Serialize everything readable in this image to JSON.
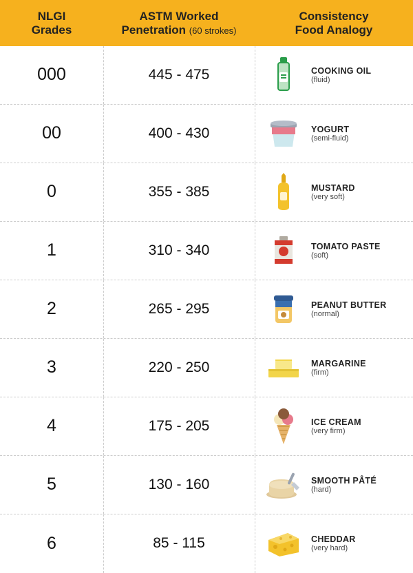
{
  "header": {
    "col1_line1": "NLGI",
    "col1_line2": "Grades",
    "col2_line1": "ASTM Worked",
    "col2_line2": "Penetration ",
    "col2_sub": "(60 strokes)",
    "col3_line1": "Consistency",
    "col3_line2": "Food Analogy"
  },
  "header_bg": "#f6b11e",
  "rows": [
    {
      "grade": "000",
      "penetration": "445 - 475",
      "food": "COOKING OIL",
      "desc": "(fluid)",
      "icon": "oil"
    },
    {
      "grade": "00",
      "penetration": "400 - 430",
      "food": "YOGURT",
      "desc": "(semi-fluid)",
      "icon": "yogurt"
    },
    {
      "grade": "0",
      "penetration": "355 - 385",
      "food": "MUSTARD",
      "desc": "(very soft)",
      "icon": "mustard"
    },
    {
      "grade": "1",
      "penetration": "310 - 340",
      "food": "TOMATO PASTE",
      "desc": "(soft)",
      "icon": "tomato"
    },
    {
      "grade": "2",
      "penetration": "265 - 295",
      "food": "PEANUT BUTTER",
      "desc": "(normal)",
      "icon": "peanut"
    },
    {
      "grade": "3",
      "penetration": "220 - 250",
      "food": "MARGARINE",
      "desc": "(firm)",
      "icon": "margarine"
    },
    {
      "grade": "4",
      "penetration": "175 - 205",
      "food": "ICE CREAM",
      "desc": "(very firm)",
      "icon": "icecream"
    },
    {
      "grade": "5",
      "penetration": "130 - 160",
      "food": "SMOOTH PÂTÉ",
      "desc": "(hard)",
      "icon": "pate"
    },
    {
      "grade": "6",
      "penetration": "85 - 115",
      "food": "CHEDDAR",
      "desc": "(very hard)",
      "icon": "cheddar"
    }
  ],
  "icons": {
    "oil": "<svg width='34' height='56' viewBox='0 0 34 56'><rect x='9' y='10' width='16' height='40' rx='3' fill='#bde3c3' stroke='#2a9d4a' stroke-width='2'/><rect x='12' y='2' width='10' height='8' rx='2' fill='#2a9d4a'/><rect x='11' y='24' width='12' height='14' rx='1.5' fill='#fff'/><rect x='13' y='27' width='8' height='2' fill='#2a9d4a'/><rect x='13' y='31' width='8' height='2' fill='#2a9d4a'/></svg>",
    "yogurt": "<svg width='46' height='46' viewBox='0 0 46 46'><path d='M6 14 L40 14 L36 42 L10 42 Z' fill='#cde8ee'/><rect x='6' y='14' width='34' height='10' fill='#e77a8b'/><rect x='4' y='8' width='38' height='6' rx='2' fill='#9aa3b0'/><ellipse cx='23' cy='8' rx='19' ry='4' fill='#b4bcc8'/></svg>",
    "mustard": "<svg width='32' height='56' viewBox='0 0 32 56'><path d='M8 20 Q8 14 16 14 Q24 14 24 20 L24 50 Q24 54 16 54 Q8 54 8 50 Z' fill='#f3c22b'/><rect x='13' y='4' width='6' height='10' fill='#e0a816'/><polygon points='16,0 13,4 19,4' fill='#e0a816'/><rect x='11' y='28' width='10' height='12' rx='2' fill='#fff4d0'/></svg>",
    "tomato": "<svg width='38' height='50' viewBox='0 0 38 50'><rect x='6' y='10' width='26' height='34' rx='2' fill='#e9e6df'/><rect x='6' y='10' width='26' height='7' fill='#d43b2e'/><rect x='6' y='37' width='26' height='7' fill='#d43b2e'/><circle cx='19' cy='26' r='7' fill='#d43b2e'/><rect x='13' y='4' width='12' height='6' rx='1' fill='#b0aaa0'/></svg>",
    "peanut": "<svg width='36' height='52' viewBox='0 0 36 52'><rect x='6' y='14' width='24' height='32' rx='4' fill='#f3c766'/><rect x='6' y='14' width='24' height='9' fill='#3a6fb0'/><rect x='4' y='6' width='28' height='8' rx='3' fill='#2f5a93'/><rect x='10' y='28' width='16' height='12' rx='2' fill='#fff'/><circle cx='18' cy='34' r='4' fill='#c58a3a'/></svg>",
    "margarine": "<svg width='52' height='40' viewBox='0 0 52 40'><rect x='4' y='22' width='44' height='12' rx='1' fill='#f2d54a'/><rect x='4' y='22' width='44' height='3' fill='#e3c334'/><rect x='14' y='8' width='24' height='14' rx='1' fill='#f8e88a'/><path d='M14 8 L38 8 L38 10 L14 10 Z' fill='#f2d54a'/></svg>",
    "icecream": "<svg width='40' height='56' viewBox='0 0 40 56'><polygon points='20,54 10,26 30,26' fill='#e6b36a'/><path d='M12 28 L28 28 M14 34 L26 34 M16 40 L24 40 M18 46 L22 46' stroke='#c8923e' stroke-width='1.2'/><circle cx='14' cy='18' r='8' fill='#f5e6b8'/><circle cx='26' cy='18' r='8' fill='#e77a8b'/><circle cx='20' cy='10' r='8' fill='#8a5a3a'/></svg>",
    "pate": "<svg width='54' height='44' viewBox='0 0 54 44'><ellipse cx='24' cy='36' rx='22' ry='6' fill='#e0c89a'/><path d='M6 22 Q6 14 24 14 Q42 14 42 22 L42 34 Q42 40 24 40 Q6 40 6 34 Z' fill='#e9d4a6'/><ellipse cx='24' cy='22' rx='18' ry='6' fill='#f0e0bb'/><rect x='36' y='4' width='4' height='18' rx='2' fill='#9aa3b0' transform='rotate(25 38 13)'/><path d='M42 18 L50 26 L46 30 L38 22 Z' fill='#c4cbd4'/></svg>",
    "cheddar": "<svg width='52' height='42' viewBox='0 0 52 42'><path d='M4 16 L32 6 L48 14 L48 34 L20 40 L4 32 Z' fill='#f3c22b'/><path d='M4 16 L32 6 L48 14 L20 22 Z' fill='#f8d867'/><circle cx='14' cy='26' r='3' fill='#e0a816'/><circle cx='28' cy='30' r='2.5' fill='#e0a816'/><circle cx='38' cy='24' r='2.5' fill='#e0a816'/><circle cx='22' cy='14' r='2' fill='#e6b634'/><circle cx='36' cy='12' r='2' fill='#e6b634'/></svg>"
  }
}
